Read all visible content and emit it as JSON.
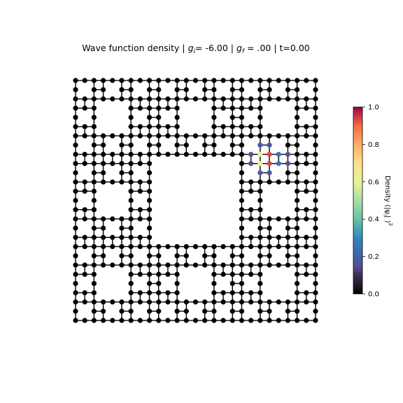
{
  "chart_data": {
    "type": "lattice-graph",
    "title": {
      "prefix": "Wave function density | ",
      "gi_symbol": "g",
      "gi_sub": "i",
      "gi_value": "=  -6.00 | ",
      "gf_symbol": "g",
      "gf_sub": "f",
      "gf_value": " = .00 | t=0.00"
    },
    "lattice": {
      "kind": "Sierpinski carpet",
      "level": 3,
      "grid_size": 27,
      "x_range": [
        0,
        26
      ],
      "y_range": [
        0,
        26
      ]
    },
    "density_nodes": [
      {
        "x": 20,
        "y": 19,
        "density": 0.17
      },
      {
        "x": 21,
        "y": 19,
        "density": 0.17
      },
      {
        "x": 19,
        "y": 18,
        "density": 0.17
      },
      {
        "x": 20,
        "y": 18,
        "density": 0.65
      },
      {
        "x": 21,
        "y": 18,
        "density": 0.93
      },
      {
        "x": 22,
        "y": 18,
        "density": 0.25
      },
      {
        "x": 23,
        "y": 18,
        "density": 0.17
      },
      {
        "x": 19,
        "y": 17,
        "density": 0.17
      },
      {
        "x": 20,
        "y": 17,
        "density": 0.65
      },
      {
        "x": 21,
        "y": 17,
        "density": 0.93
      },
      {
        "x": 22,
        "y": 17,
        "density": 0.25
      },
      {
        "x": 23,
        "y": 17,
        "density": 0.17
      },
      {
        "x": 20,
        "y": 16,
        "density": 0.17
      },
      {
        "x": 21,
        "y": 16,
        "density": 0.17
      }
    ],
    "colorbar": {
      "colormap": "Spectral_r",
      "min": 0.0,
      "max": 1.0,
      "ticks": [
        "0.0",
        "0.2",
        "0.4",
        "0.6",
        "0.8",
        "1.0"
      ],
      "label": "Density (|ψ|²)",
      "label_main": "Density (|ψ",
      "label_sub": "i",
      "label_sup": "2",
      "label_close": "|  )"
    },
    "node_color_default": "#000000",
    "edge_color": "#000000"
  }
}
